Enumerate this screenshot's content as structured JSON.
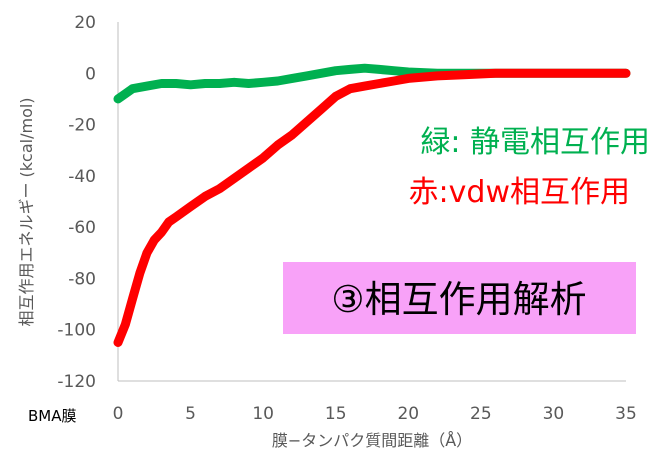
{
  "chart_data": {
    "type": "line",
    "xlabel": "膜−タンパク質間距離（Å）",
    "ylabel": "相互作用エネルギー (kcal/mol)",
    "xlim": [
      0,
      35
    ],
    "ylim": [
      -120,
      20
    ],
    "x_ticks": [
      "0",
      "5",
      "10",
      "15",
      "20",
      "25",
      "30",
      "35"
    ],
    "y_ticks": [
      "20",
      "0",
      "-20",
      "-40",
      "-60",
      "-80",
      "-100",
      "-120"
    ],
    "x_ticks_values": [
      0,
      5,
      10,
      15,
      20,
      25,
      30,
      35
    ],
    "y_ticks_values": [
      20,
      0,
      -20,
      -40,
      -60,
      -80,
      -100,
      -120
    ],
    "grid": false,
    "x_origin_label": "BMA膜",
    "series": [
      {
        "color": "#00b050",
        "x": [
          0,
          0.5,
          1,
          2,
          3,
          4,
          5,
          6,
          7,
          8,
          9,
          10,
          11,
          12,
          13,
          14,
          15,
          16,
          17,
          18,
          19,
          20,
          22,
          25,
          28,
          30,
          33,
          35
        ],
        "y": [
          -10,
          -8,
          -6,
          -5,
          -4,
          -4,
          -4.5,
          -4,
          -4,
          -3.5,
          -4,
          -3.5,
          -3,
          -2,
          -1,
          0,
          1,
          1.5,
          2,
          1.5,
          1,
          0.5,
          0,
          0,
          0,
          0,
          0,
          0
        ]
      },
      {
        "color": "#ff0000",
        "x": [
          0,
          0.5,
          1,
          1.5,
          2,
          2.5,
          3,
          3.5,
          4,
          5,
          6,
          7,
          8,
          9,
          10,
          11,
          12,
          13,
          14,
          15,
          16,
          17,
          18,
          19,
          20,
          22,
          24,
          26,
          28,
          30,
          32,
          35
        ],
        "y": [
          -105,
          -98,
          -88,
          -78,
          -70,
          -65,
          -62,
          -58,
          -56,
          -52,
          -48,
          -45,
          -41,
          -37,
          -33,
          -28,
          -24,
          -19,
          -14,
          -9,
          -6,
          -5,
          -4,
          -3,
          -2,
          -1,
          -0.5,
          0,
          0,
          0,
          0,
          0
        ]
      }
    ],
    "annotations": {
      "green_label": "緑: 静電相互作用",
      "red_label": "赤:vdw相互作用",
      "box_label": "③相互作用解析"
    },
    "colors": {
      "green": "#00b050",
      "red": "#ff0000",
      "box_fill": "#f8a2f8",
      "axis": "#bfbfbf"
    }
  }
}
